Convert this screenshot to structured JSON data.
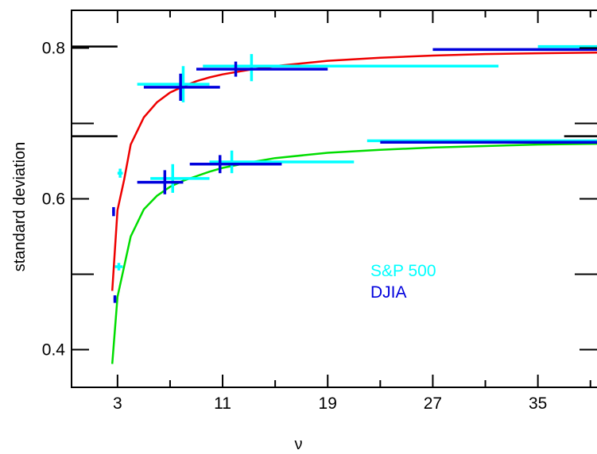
{
  "chart_data": {
    "type": "scatter",
    "xlabel": "ν",
    "ylabel": "standard deviation",
    "xlim": [
      -0.5,
      39.5
    ],
    "ylim": [
      0.35,
      0.85
    ],
    "xticks": [
      3,
      11,
      19,
      27,
      35
    ],
    "xtick_labels": [
      "3",
      "11",
      "19",
      "27",
      "35"
    ],
    "yticks": [
      0.4,
      0.6,
      0.8
    ],
    "ytick_labels": [
      "0.4",
      "0.6",
      "0.8"
    ],
    "y_minor_ticks": [
      0.5,
      0.7
    ],
    "x_minor_ticks": [
      7,
      15,
      23,
      31,
      39
    ],
    "grid": false,
    "legend": {
      "position": "center-right",
      "entries": [
        {
          "label": "S&P 500",
          "color": "#00ffff"
        },
        {
          "label": "DJIA",
          "color": "#0000dd"
        }
      ]
    },
    "reference_lines": [
      {
        "y": 0.802,
        "x": [
          -0.5,
          3.0
        ],
        "color": "#000000"
      },
      {
        "y": 0.683,
        "x": [
          -0.5,
          3.0
        ],
        "color": "#000000"
      },
      {
        "y": 0.683,
        "x": [
          37.0,
          39.5
        ],
        "color": "#000000"
      }
    ],
    "curves": [
      {
        "color": "#ee0000",
        "points": [
          [
            2.6,
            0.478
          ],
          [
            3.0,
            0.585
          ],
          [
            3.5,
            0.625
          ],
          [
            4.0,
            0.672
          ],
          [
            5.0,
            0.708
          ],
          [
            6.0,
            0.728
          ],
          [
            7.0,
            0.741
          ],
          [
            8.0,
            0.749
          ],
          [
            9.0,
            0.756
          ],
          [
            10.0,
            0.761
          ],
          [
            11.0,
            0.765
          ],
          [
            13.0,
            0.771
          ],
          [
            15.0,
            0.776
          ],
          [
            19.0,
            0.783
          ],
          [
            23.0,
            0.787
          ],
          [
            27.0,
            0.79
          ],
          [
            31.0,
            0.792
          ],
          [
            35.0,
            0.793
          ],
          [
            39.5,
            0.794
          ]
        ]
      },
      {
        "color": "#00dd00",
        "points": [
          [
            2.6,
            0.381
          ],
          [
            3.0,
            0.47
          ],
          [
            4.0,
            0.55
          ],
          [
            5.0,
            0.586
          ],
          [
            6.0,
            0.604
          ],
          [
            7.0,
            0.616
          ],
          [
            8.0,
            0.624
          ],
          [
            9.0,
            0.63
          ],
          [
            10.0,
            0.636
          ],
          [
            11.0,
            0.641
          ],
          [
            13.0,
            0.648
          ],
          [
            15.0,
            0.654
          ],
          [
            19.0,
            0.661
          ],
          [
            23.0,
            0.665
          ],
          [
            27.0,
            0.668
          ],
          [
            31.0,
            0.67
          ],
          [
            35.0,
            0.672
          ],
          [
            39.5,
            0.673
          ]
        ]
      }
    ],
    "series": [
      {
        "name": "S&P 500",
        "color": "#00ffff",
        "points": [
          {
            "x": 3.2,
            "y": 0.634,
            "xerr": [
              3.0,
              3.4
            ],
            "yerr": [
              0.628,
              0.64
            ]
          },
          {
            "x": 3.1,
            "y": 0.51,
            "xerr": [
              2.8,
              3.4
            ],
            "yerr": [
              0.505,
              0.515
            ]
          },
          {
            "x": 8.0,
            "y": 0.752,
            "xerr": [
              4.5,
              10.0
            ],
            "yerr": [
              0.728,
              0.776
            ]
          },
          {
            "x": 13.2,
            "y": 0.776,
            "xerr": [
              9.5,
              32.0
            ],
            "yerr": [
              0.756,
              0.792
            ]
          },
          {
            "x": 40.0,
            "y": 0.802,
            "xerr": [
              35.0,
              41.0
            ],
            "yerr": [
              0.795,
              0.809
            ]
          },
          {
            "x": 7.2,
            "y": 0.627,
            "xerr": [
              5.5,
              10.0
            ],
            "yerr": [
              0.608,
              0.646
            ]
          },
          {
            "x": 11.7,
            "y": 0.649,
            "xerr": [
              10.0,
              21.0
            ],
            "yerr": [
              0.634,
              0.664
            ]
          },
          {
            "x": 40.0,
            "y": 0.677,
            "xerr": [
              22.0,
              41.0
            ],
            "yerr": [
              0.672,
              0.682
            ]
          }
        ]
      },
      {
        "name": "DJIA",
        "color": "#0000dd",
        "points": [
          {
            "x": 2.7,
            "y": 0.583,
            "xerr": [
              2.6,
              2.8
            ],
            "yerr": [
              0.577,
              0.589
            ]
          },
          {
            "x": 2.8,
            "y": 0.467,
            "xerr": [
              2.7,
              2.9
            ],
            "yerr": [
              0.462,
              0.472
            ]
          },
          {
            "x": 7.8,
            "y": 0.748,
            "xerr": [
              5.0,
              10.8
            ],
            "yerr": [
              0.73,
              0.766
            ]
          },
          {
            "x": 12.0,
            "y": 0.772,
            "xerr": [
              9.0,
              19.0
            ],
            "yerr": [
              0.762,
              0.782
            ]
          },
          {
            "x": 40.0,
            "y": 0.798,
            "xerr": [
              27.0,
              41.0
            ],
            "yerr": [
              0.795,
              0.801
            ]
          },
          {
            "x": 6.6,
            "y": 0.622,
            "xerr": [
              4.5,
              8.0
            ],
            "yerr": [
              0.606,
              0.638
            ]
          },
          {
            "x": 10.8,
            "y": 0.646,
            "xerr": [
              8.5,
              15.5
            ],
            "yerr": [
              0.634,
              0.658
            ]
          },
          {
            "x": 40.0,
            "y": 0.675,
            "xerr": [
              23.0,
              41.0
            ],
            "yerr": [
              0.672,
              0.678
            ]
          }
        ]
      }
    ]
  }
}
